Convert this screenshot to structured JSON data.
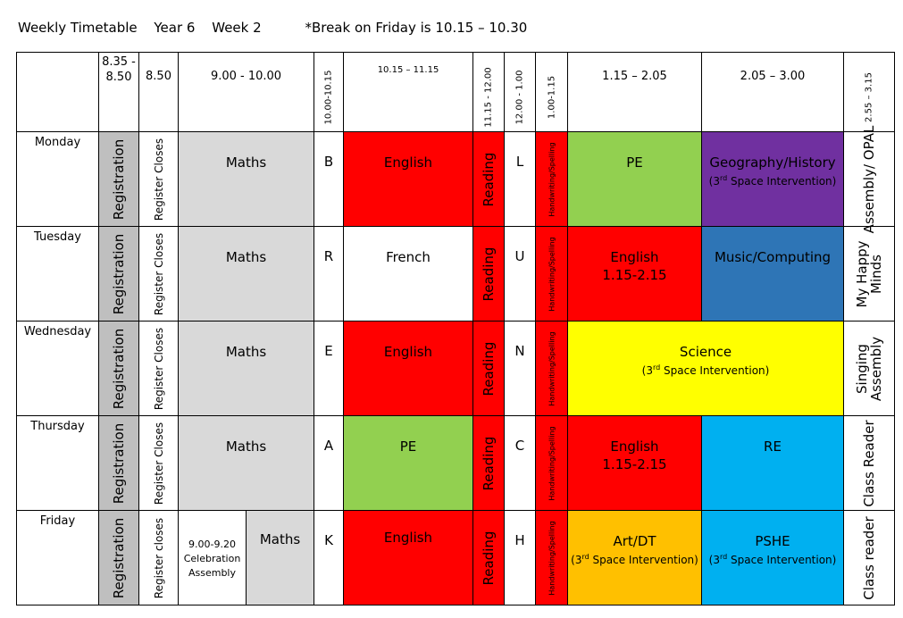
{
  "header": {
    "title": "Weekly Timetable",
    "year": "Year 6",
    "week": "Week 2",
    "note": "*Break on Friday is 10.15 – 10.30"
  },
  "columns": {
    "c1": "8.35 - 8.50",
    "c2": "8.50",
    "c3": "9.00 - 10.00",
    "c4": "10.00-10.15",
    "c5": "10.15 – 11.15",
    "c6": "11.15 - 12.00",
    "c7": "12.00 - 1.00",
    "c8": "1.00-1.15",
    "c9": "1.15 – 2.05",
    "c10": "2.05 – 3.00",
    "c11": "2.55 – 3.15"
  },
  "common": {
    "registration": "Registration",
    "register_closes": "Register Closes",
    "maths": "Maths",
    "reading": "Reading",
    "handwriting": "Handwriting/Spelling"
  },
  "days": {
    "mon": {
      "name": "Monday",
      "break_letter": "B",
      "mid": "English",
      "lunch_letter": "L",
      "p9": "PE",
      "p10": "Geography/History",
      "p10_sub_a": "(3",
      "p10_sub_sup": "rd",
      "p10_sub_b": " Space Intervention)",
      "end": "Assembly/ OPAL"
    },
    "tue": {
      "name": "Tuesday",
      "break_letter": "R",
      "mid": "French",
      "lunch_letter": "U",
      "p9": "English",
      "p9_sub": "1.15-2.15",
      "p10": "Music/Computing",
      "end": "My Happy Minds"
    },
    "wed": {
      "name": "Wednesday",
      "break_letter": "E",
      "mid": "English",
      "lunch_letter": "N",
      "p9": "Science",
      "p9_sub_a": "(3",
      "p9_sub_sup": "rd",
      "p9_sub_b": " Space Intervention)",
      "end": "Singing Assembly"
    },
    "thu": {
      "name": "Thursday",
      "break_letter": "A",
      "mid": "PE",
      "lunch_letter": "C",
      "p9": "English",
      "p9_sub": "1.15-2.15",
      "p10": "RE",
      "end": "Class Reader"
    },
    "fri": {
      "name": "Friday",
      "register_closes": "Register closes",
      "assembly": "9.00-9.20 Celebration Assembly",
      "break_letter": "K",
      "mid": "English",
      "lunch_letter": "H",
      "p9": "Art/DT",
      "p9_sub_a": "(3",
      "p9_sub_sup": "rd",
      "p9_sub_b": " Space Intervention)",
      "p10": "PSHE",
      "p10_sub_a": "(3",
      "p10_sub_sup": "rd",
      "p10_sub_b": " Space Intervention)",
      "end": "Class reader"
    }
  },
  "colors": {
    "english": "#ff0000",
    "pe": "#92d050",
    "geography": "#7030a0",
    "music": "#2e75b6",
    "science": "#ffff00",
    "re": "#00b0f0",
    "art": "#ffc000",
    "maths": "#d9d9d9",
    "registration": "#bfbfbf"
  }
}
